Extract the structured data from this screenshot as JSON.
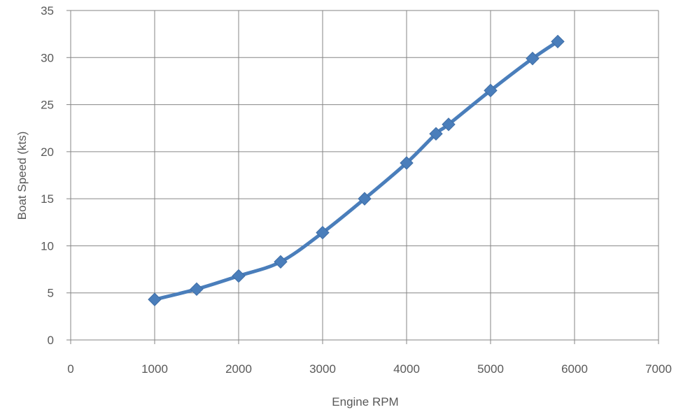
{
  "chart_data": {
    "type": "scatter",
    "title": "",
    "xlabel": "Engine RPM",
    "ylabel": "Boat Speed (kts)",
    "xlim": [
      0,
      7000
    ],
    "ylim": [
      0,
      35
    ],
    "xticks": [
      0,
      1000,
      2000,
      3000,
      4000,
      5000,
      6000,
      7000
    ],
    "yticks": [
      0,
      5,
      10,
      15,
      20,
      25,
      30,
      35
    ],
    "grid": true,
    "legend": "none",
    "series": [
      {
        "x": [
          1000,
          1500,
          2000,
          2500,
          3000,
          3500,
          4000,
          4350,
          4500,
          5000,
          5500,
          5800
        ],
        "y": [
          4.3,
          5.4,
          6.8,
          8.3,
          11.4,
          15.0,
          18.8,
          21.9,
          22.9,
          26.5,
          29.9,
          31.7
        ],
        "color": "#4a7ebb",
        "marker": "diamond",
        "line": "smooth"
      }
    ]
  }
}
